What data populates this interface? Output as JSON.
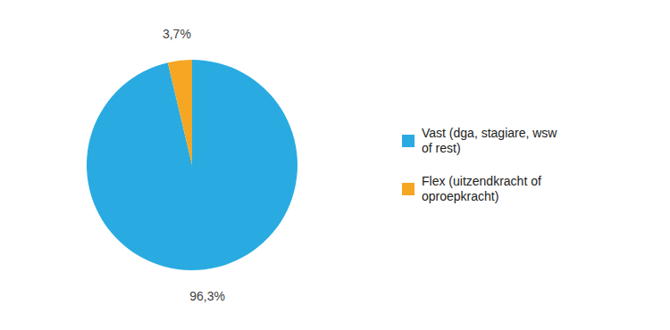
{
  "chart_data": {
    "type": "pie",
    "categories": [
      "Vast (dga, stagiare, wsw\nof rest)",
      "Flex (uitzendkracht of\noproepkracht)"
    ],
    "values": [
      96.3,
      3.7
    ],
    "value_labels": [
      "96,3%",
      "3,7%"
    ],
    "colors": [
      "#29ABE2",
      "#F5A623"
    ],
    "data_labels": true,
    "legend": "right"
  }
}
